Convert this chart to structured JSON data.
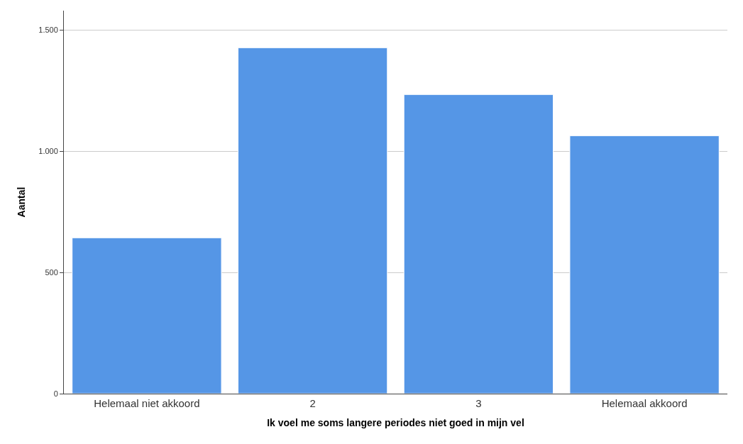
{
  "chart_data": {
    "type": "bar",
    "xlabel": "Ik voel me soms langere periodes niet goed in mijn vel",
    "ylabel": "Aantal",
    "categories": [
      "Helemaal niet akkoord",
      "2",
      "3",
      "Helemaal akkoord"
    ],
    "values": [
      643,
      1427,
      1234,
      1064
    ],
    "color": "#5596e6",
    "ylim": [
      0,
      1580
    ],
    "yticks": [
      0,
      500,
      {
        "value": 1000,
        "label": "1.000"
      },
      {
        "value": 1500,
        "label": "1.500"
      }
    ],
    "grid": "y",
    "legend": false
  }
}
